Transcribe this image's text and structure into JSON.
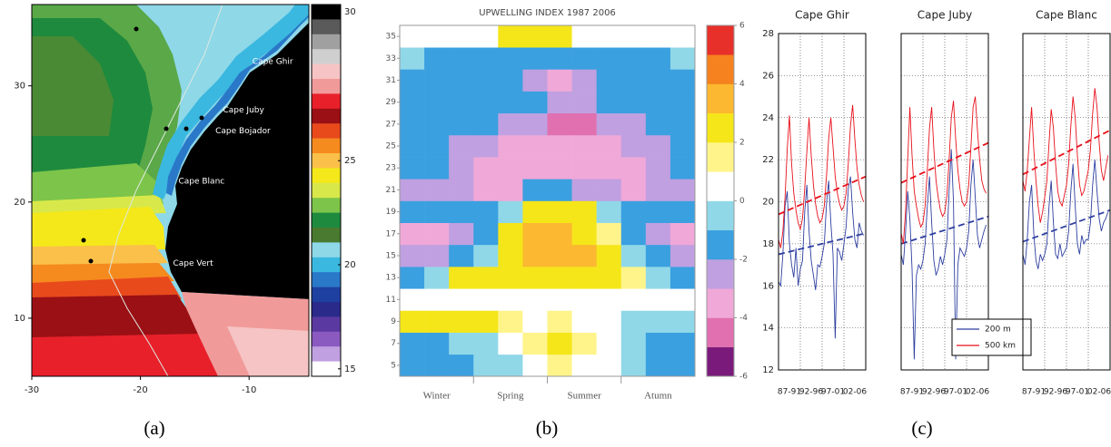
{
  "captions": [
    "(a)",
    "(b)",
    "(c)"
  ],
  "chart_data": [
    {
      "type": "map",
      "xlim": [
        -30,
        -4.5
      ],
      "ylim": [
        5,
        37
      ],
      "xticks": [
        -30,
        -20,
        -10
      ],
      "yticks": [
        10,
        20,
        30
      ],
      "annotations": [
        {
          "text": "Cape Ghir",
          "x": -9.7,
          "y": 32.1
        },
        {
          "text": "Cape Juby",
          "x": -12.4,
          "y": 27.9
        },
        {
          "text": "Cape Bojador",
          "x": -13.1,
          "y": 26.1
        },
        {
          "text": "Cape Blanc",
          "x": -16.5,
          "y": 21.8
        },
        {
          "text": "Cape Vert",
          "x": -17.0,
          "y": 14.7
        }
      ],
      "colorbar": {
        "levels": [
          30,
          29.5,
          29,
          28.5,
          28,
          27.5,
          27,
          26.5,
          26,
          25.5,
          25,
          24.5,
          24,
          23.5,
          23,
          22,
          21,
          20,
          19,
          18,
          17.5,
          17,
          16.5,
          16,
          15
        ],
        "colors": [
          "#000000",
          "#5a5a5a",
          "#a0a0a0",
          "#cfcfcf",
          "#f6c4c4",
          "#f19a9a",
          "#e8202a",
          "#9a1015",
          "#e84a1c",
          "#f58a1e",
          "#fbc04a",
          "#f4e81a",
          "#d8e84a",
          "#7cc44a",
          "#1e8a3e",
          "#4a7a30",
          "#8ed8e8",
          "#3ab8e0",
          "#2a78c8",
          "#1e40a0",
          "#2a2a8a",
          "#5a3aa0",
          "#8a5ac0",
          "#c0a0e0",
          "#ffffff"
        ],
        "ticks": [
          30,
          25,
          20,
          15
        ]
      }
    },
    {
      "type": "heatmap",
      "title": "UPWELLING INDEX  1987 2006",
      "categories": [
        "Winter",
        "Spring",
        "Summer",
        "Atumn"
      ],
      "ylim": [
        4,
        36
      ],
      "yticks": [
        5,
        7,
        9,
        11,
        13,
        15,
        17,
        19,
        21,
        23,
        25,
        27,
        29,
        31,
        33,
        35
      ],
      "y": [
        5,
        7,
        9,
        11,
        13,
        15,
        17,
        19,
        21,
        23,
        25,
        27,
        29,
        31,
        33,
        35
      ],
      "z": [
        [
          -2,
          -2,
          -2,
          -1,
          -1,
          0,
          1,
          0,
          0,
          -1,
          -2,
          -2
        ],
        [
          -2,
          -2,
          -1,
          -1,
          0,
          1,
          2,
          1,
          0,
          -1,
          -2,
          -2
        ],
        [
          2,
          2,
          2,
          2,
          1,
          0,
          1,
          0,
          0,
          -1,
          -1,
          -1
        ],
        [
          0,
          0,
          0,
          0,
          0,
          0,
          0,
          0,
          0,
          0,
          0,
          0
        ],
        [
          -2,
          -1,
          2,
          2,
          2,
          2,
          2,
          2,
          2,
          1,
          -1,
          -2
        ],
        [
          -3,
          -3,
          -2,
          -1,
          2,
          3,
          3,
          3,
          2,
          -1,
          -2,
          -3
        ],
        [
          -4,
          -4,
          -3,
          -2,
          2,
          3,
          3,
          2,
          1,
          -2,
          -3,
          -4
        ],
        [
          -2,
          -2,
          -2,
          -2,
          -1,
          2,
          2,
          2,
          -1,
          -2,
          -2,
          -2
        ],
        [
          -3,
          -3,
          -3,
          -4,
          -4,
          -2,
          -2,
          -3,
          -3,
          -4,
          -3,
          -3
        ],
        [
          -2,
          -2,
          -3,
          -4,
          -4,
          -4,
          -4,
          -4,
          -4,
          -4,
          -3,
          -2
        ],
        [
          -2,
          -2,
          -3,
          -3,
          -4,
          -4,
          -4,
          -4,
          -4,
          -3,
          -3,
          -2
        ],
        [
          -2,
          -2,
          -2,
          -2,
          -3,
          -3,
          -5,
          -5,
          -3,
          -3,
          -2,
          -2
        ],
        [
          -2,
          -2,
          -2,
          -2,
          -2,
          -2,
          -3,
          -3,
          -2,
          -2,
          -2,
          -2
        ],
        [
          -2,
          -2,
          -2,
          -2,
          -2,
          -3,
          -4,
          -3,
          -2,
          -2,
          -2,
          -2
        ],
        [
          -1,
          -2,
          -2,
          -2,
          -2,
          -2,
          -2,
          -2,
          -2,
          -2,
          -2,
          -1
        ],
        [
          0,
          0,
          0,
          0,
          2,
          2,
          2,
          0,
          0,
          0,
          0,
          0
        ]
      ],
      "colorbar": {
        "bounds": [
          -6,
          -5,
          -4,
          -3,
          -2,
          -1,
          0,
          1,
          2,
          3,
          4,
          5,
          6
        ],
        "colors": [
          "#7a1a7a",
          "#e070b0",
          "#f0a8d8",
          "#c0a0e0",
          "#3aa0e0",
          "#90d8e8",
          "#ffffff",
          "#fff48a",
          "#f5e61a",
          "#fbb830",
          "#f5821e",
          "#e8302a"
        ],
        "ticks": [
          6,
          4,
          2,
          0,
          -2,
          -4,
          -6
        ]
      }
    },
    {
      "type": "line",
      "title": "Cape Ghir",
      "show_ytick_labels": true,
      "x": [
        1987,
        1987.5,
        1988,
        1988.5,
        1989,
        1989.5,
        1990,
        1990.5,
        1991,
        1991.5,
        1992,
        1992.5,
        1993,
        1993.5,
        1994,
        1994.5,
        1995,
        1995.5,
        1996,
        1996.5,
        1997,
        1997.5,
        1998,
        1998.5,
        1999,
        1999.5,
        2000,
        2000.5,
        2001,
        2001.5,
        2002,
        2002.5,
        2003,
        2003.5,
        2004,
        2004.5,
        2005,
        2005.5,
        2006,
        2006.5
      ],
      "xlim": [
        1987,
        2007
      ],
      "xticks": [
        {
          "value": 1989.5,
          "label": "87-91"
        },
        {
          "value": 1994.5,
          "label": "92-96"
        },
        {
          "value": 1999.5,
          "label": "97-01"
        },
        {
          "value": 2004.5,
          "label": "02-06"
        }
      ],
      "xgrid": [
        1992,
        1997,
        2002
      ],
      "ylim": [
        12,
        28
      ],
      "yticks": [
        12,
        14,
        16,
        18,
        20,
        22,
        24,
        26,
        28
      ],
      "series": [
        {
          "color": "#2e3fa0",
          "trend": [
            17.5,
            18.5
          ],
          "values": [
            16.2,
            16.0,
            17.5,
            19.8,
            20.5,
            18.0,
            17.0,
            16.4,
            17.8,
            16.0,
            16.8,
            17.2,
            19.5,
            20.8,
            18.6,
            17.2,
            16.5,
            15.8,
            17.0,
            16.9,
            17.4,
            18.0,
            19.9,
            21.0,
            19.0,
            17.5,
            13.5,
            17.8,
            17.6,
            17.2,
            18.0,
            18.8,
            20.6,
            21.2,
            19.5,
            18.2,
            17.8,
            19.0,
            18.6,
            18.4
          ]
        },
        {
          "color": "#e8101a",
          "trend": [
            19.4,
            21.2
          ],
          "values": [
            18.2,
            17.8,
            18.6,
            20.2,
            22.5,
            24.1,
            21.8,
            20.4,
            19.6,
            19.0,
            18.7,
            19.2,
            20.6,
            22.4,
            24.0,
            22.2,
            20.8,
            19.9,
            19.3,
            19.0,
            19.2,
            19.8,
            21.2,
            23.0,
            24.0,
            22.6,
            21.2,
            20.4,
            19.9,
            19.6,
            19.8,
            20.4,
            21.8,
            23.6,
            24.6,
            23.0,
            21.6,
            20.8,
            20.3,
            20.0
          ]
        }
      ]
    },
    {
      "type": "line",
      "title": "Cape Juby",
      "show_ytick_labels": false,
      "legend": "lower right",
      "x": [
        1987,
        1987.5,
        1988,
        1988.5,
        1989,
        1989.5,
        1990,
        1990.5,
        1991,
        1991.5,
        1992,
        1992.5,
        1993,
        1993.5,
        1994,
        1994.5,
        1995,
        1995.5,
        1996,
        1996.5,
        1997,
        1997.5,
        1998,
        1998.5,
        1999,
        1999.5,
        2000,
        2000.5,
        2001,
        2001.5,
        2002,
        2002.5,
        2003,
        2003.5,
        2004,
        2004.5,
        2005,
        2005.5,
        2006,
        2006.5
      ],
      "xlim": [
        1987,
        2007
      ],
      "xticks": [
        {
          "value": 1989.5,
          "label": "87-91"
        },
        {
          "value": 1994.5,
          "label": "92-96"
        },
        {
          "value": 1999.5,
          "label": "97-01"
        },
        {
          "value": 2004.5,
          "label": "02-06"
        }
      ],
      "xgrid": [
        1992,
        1997,
        2002
      ],
      "ylim": [
        12,
        28
      ],
      "yticks": [
        12,
        14,
        16,
        18,
        20,
        22,
        24,
        26,
        28
      ],
      "series": [
        {
          "name": "200 m",
          "color": "#2e3fa0",
          "trend": [
            18.0,
            19.3
          ],
          "values": [
            17.5,
            17.0,
            18.5,
            20.5,
            19.2,
            16.8,
            12.5,
            16.5,
            17.0,
            16.8,
            17.2,
            18.0,
            19.8,
            21.2,
            19.0,
            17.2,
            16.5,
            16.8,
            17.4,
            17.0,
            17.5,
            18.2,
            20.5,
            22.5,
            20.0,
            12.5,
            17.0,
            17.8,
            17.6,
            17.4,
            17.8,
            18.6,
            20.8,
            22.0,
            20.2,
            18.4,
            17.8,
            18.2,
            18.6,
            18.9
          ]
        },
        {
          "name": "500 km",
          "color": "#e8101a",
          "trend": [
            20.9,
            22.8
          ],
          "values": [
            18.5,
            18.0,
            19.5,
            22.0,
            24.5,
            22.2,
            20.5,
            19.8,
            19.2,
            18.8,
            19.0,
            19.8,
            21.5,
            23.5,
            24.5,
            22.5,
            21.0,
            20.2,
            19.6,
            19.3,
            19.5,
            20.3,
            22.0,
            24.0,
            24.8,
            23.0,
            21.5,
            20.6,
            20.0,
            19.8,
            20.0,
            20.8,
            22.6,
            24.5,
            25.0,
            23.4,
            22.0,
            21.0,
            20.6,
            20.4
          ]
        }
      ]
    },
    {
      "type": "line",
      "title": "Cape Blanc",
      "show_ytick_labels": false,
      "x": [
        1987,
        1987.5,
        1988,
        1988.5,
        1989,
        1989.5,
        1990,
        1990.5,
        1991,
        1991.5,
        1992,
        1992.5,
        1993,
        1993.5,
        1994,
        1994.5,
        1995,
        1995.5,
        1996,
        1996.5,
        1997,
        1997.5,
        1998,
        1998.5,
        1999,
        1999.5,
        2000,
        2000.5,
        2001,
        2001.5,
        2002,
        2002.5,
        2003,
        2003.5,
        2004,
        2004.5,
        2005,
        2005.5,
        2006,
        2006.5
      ],
      "xlim": [
        1987,
        2007
      ],
      "xticks": [
        {
          "value": 1989.5,
          "label": "87-91"
        },
        {
          "value": 1994.5,
          "label": "92-96"
        },
        {
          "value": 1999.5,
          "label": "97-01"
        },
        {
          "value": 2004.5,
          "label": "02-06"
        }
      ],
      "xgrid": [
        1992,
        1997,
        2002
      ],
      "ylim": [
        12,
        28
      ],
      "yticks": [
        12,
        14,
        16,
        18,
        20,
        22,
        24,
        26,
        28
      ],
      "series": [
        {
          "color": "#2e3fa0",
          "trend": [
            18.1,
            19.6
          ],
          "values": [
            17.5,
            17.0,
            18.2,
            20.0,
            20.8,
            18.5,
            17.2,
            16.8,
            17.5,
            17.2,
            17.5,
            18.0,
            19.8,
            21.0,
            19.0,
            17.5,
            17.3,
            18.0,
            17.4,
            17.6,
            17.8,
            18.6,
            20.5,
            21.8,
            19.8,
            18.0,
            17.5,
            18.4,
            18.0,
            18.2,
            18.2,
            19.0,
            20.8,
            22.0,
            20.5,
            19.2,
            18.6,
            19.0,
            19.2,
            19.5
          ]
        },
        {
          "color": "#e8101a",
          "trend": [
            21.3,
            23.4
          ],
          "values": [
            21.0,
            20.5,
            21.5,
            23.0,
            24.5,
            22.5,
            21.0,
            19.8,
            19.0,
            19.5,
            20.2,
            21.0,
            22.8,
            24.4,
            23.5,
            21.8,
            20.5,
            20.0,
            19.8,
            20.3,
            20.8,
            21.8,
            23.6,
            25.0,
            24.0,
            22.2,
            20.8,
            20.3,
            20.5,
            21.0,
            21.5,
            22.5,
            24.2,
            25.4,
            24.5,
            22.8,
            21.5,
            21.0,
            21.6,
            22.2
          ]
        }
      ]
    }
  ]
}
